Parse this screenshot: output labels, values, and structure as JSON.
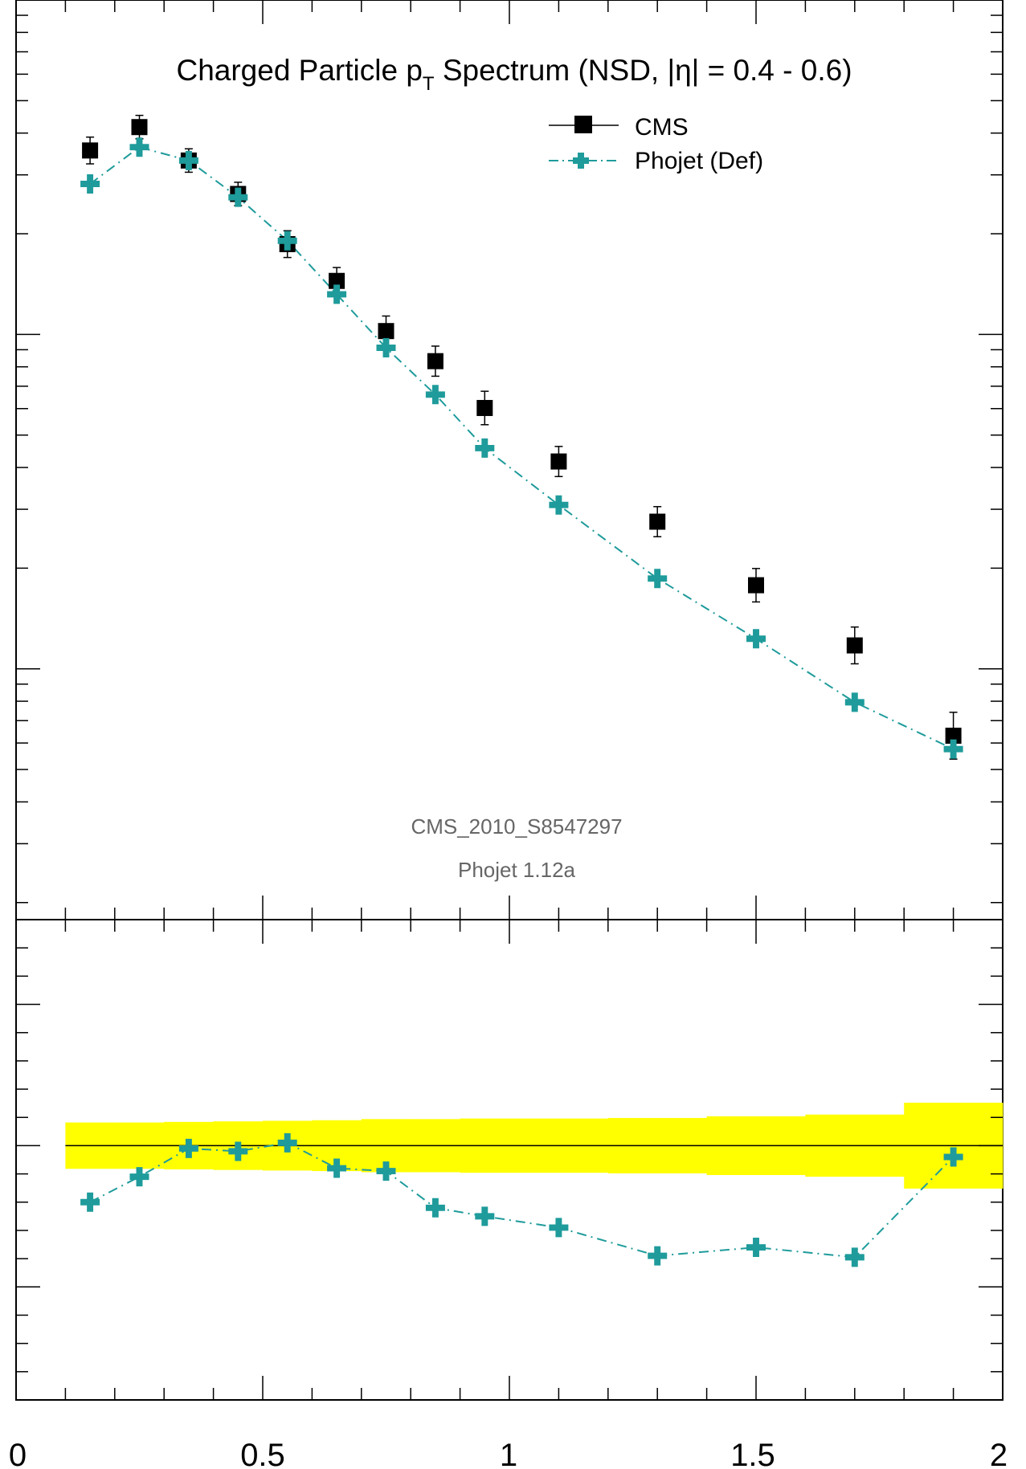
{
  "chart_data": [
    {
      "panel": "main",
      "type": "scatter",
      "title": "Charged Particle p",
      "title_sub": "T",
      "title_rest": " Spectrum (NSD, |η| = 0.4 - 0.6)",
      "x_range": [
        0,
        2
      ],
      "y_scale": "log",
      "legend_placement": "top-right",
      "annotations": [
        "CMS_2010_S8547297",
        "Phojet 1.12a"
      ],
      "x": [
        0.15,
        0.25,
        0.35,
        0.45,
        0.55,
        0.65,
        0.75,
        0.85,
        0.95,
        1.1,
        1.3,
        1.5,
        1.7,
        1.9
      ],
      "series": [
        {
          "name": "CMS",
          "color": "#000000",
          "marker": "square",
          "log10_values": [
            2.55,
            2.62,
            2.52,
            2.42,
            2.27,
            2.16,
            2.01,
            1.92,
            1.78,
            1.62,
            1.44,
            1.25,
            1.07,
            0.8
          ],
          "log10_err": [
            0.04,
            0.035,
            0.035,
            0.035,
            0.04,
            0.04,
            0.045,
            0.045,
            0.05,
            0.045,
            0.045,
            0.05,
            0.055,
            0.07
          ]
        },
        {
          "name": "Phojet (Def)",
          "color": "#1f9b9b",
          "marker": "cross",
          "line": "dash-dot",
          "log10_values": [
            2.45,
            2.56,
            2.52,
            2.41,
            2.28,
            2.12,
            1.96,
            1.82,
            1.66,
            1.49,
            1.27,
            1.09,
            0.9,
            0.76
          ]
        }
      ]
    },
    {
      "panel": "ratio",
      "type": "line",
      "x_range": [
        0,
        2
      ],
      "ratio_reference": 1.0,
      "x_tick_labels": [
        "0",
        "0.5",
        "1",
        "1.5",
        "2"
      ],
      "band_color": "#ffff00",
      "band": {
        "x_edges": [
          0.1,
          0.2,
          0.3,
          0.4,
          0.5,
          0.6,
          0.7,
          0.8,
          0.9,
          1.0,
          1.2,
          1.4,
          1.6,
          1.8,
          2.0
        ],
        "half_width": [
          0.082,
          0.082,
          0.084,
          0.086,
          0.088,
          0.09,
          0.094,
          0.094,
          0.096,
          0.096,
          0.098,
          0.104,
          0.11,
          0.152
        ]
      },
      "series": [
        {
          "name": "Phojet (Def)",
          "color": "#1f9b9b",
          "values": [
            0.8,
            0.89,
            0.99,
            0.98,
            1.01,
            0.92,
            0.91,
            0.78,
            0.75,
            0.71,
            0.61,
            0.64,
            0.605,
            0.96
          ]
        }
      ]
    }
  ]
}
